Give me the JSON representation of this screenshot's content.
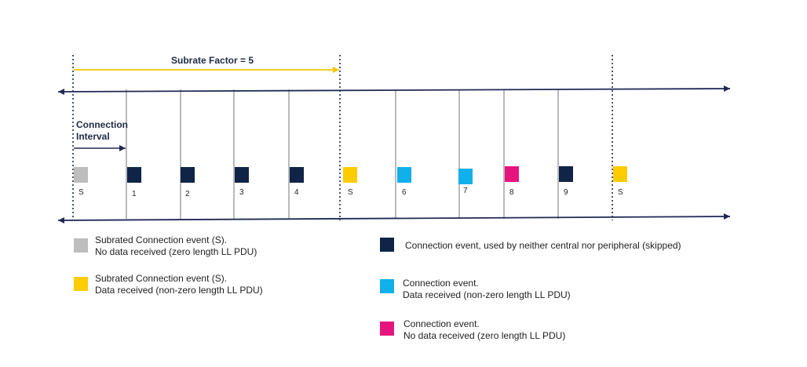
{
  "colors": {
    "axis": "#1f2a55",
    "tick": "#a8a8a8",
    "subrate_arrow": "#f5c400",
    "gray": "#bdbdbd",
    "navy": "#0f2447",
    "yellow": "#ffcc00",
    "cyan": "#10b0ea",
    "magenta": "#e6157e"
  },
  "diagram": {
    "subrate_label": "Subrate Factor = 5",
    "connection_interval_label": [
      "Connection",
      "Interval"
    ],
    "events": [
      {
        "label": "S",
        "kind": "gray"
      },
      {
        "label": "1",
        "kind": "navy"
      },
      {
        "label": "2",
        "kind": "navy"
      },
      {
        "label": "3",
        "kind": "navy"
      },
      {
        "label": "4",
        "kind": "navy"
      },
      {
        "label": "S",
        "kind": "yellow"
      },
      {
        "label": "6",
        "kind": "cyan"
      },
      {
        "label": "7",
        "kind": "cyan"
      },
      {
        "label": "8",
        "kind": "magenta"
      },
      {
        "label": "9",
        "kind": "navy"
      },
      {
        "label": "S",
        "kind": "yellow"
      }
    ]
  },
  "legend": [
    {
      "kind": "gray",
      "lines": [
        "Subrated Connection event (S).",
        "No data received (zero length LL PDU)"
      ]
    },
    {
      "kind": "yellow",
      "lines": [
        "Subrated Connection event (S).",
        "Data received (non-zero length LL PDU)"
      ]
    },
    {
      "kind": "navy",
      "lines": [
        "Connection event, used by neither central nor peripheral (skipped)"
      ]
    },
    {
      "kind": "cyan",
      "lines": [
        "Connection event.",
        "Data received (non-zero length LL PDU)"
      ]
    },
    {
      "kind": "magenta",
      "lines": [
        "Connection event.",
        "No data received (zero length LL PDU)"
      ]
    }
  ]
}
